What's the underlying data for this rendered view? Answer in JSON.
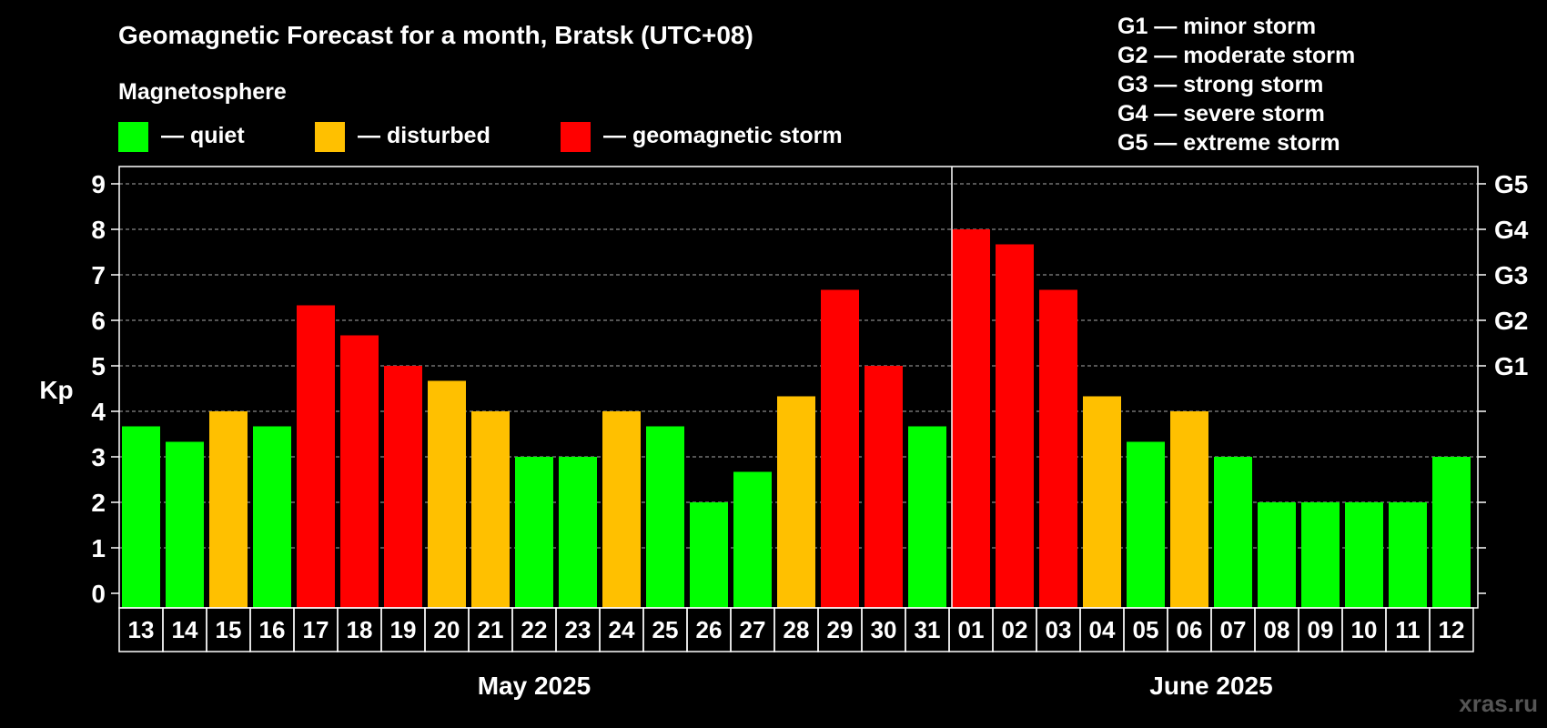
{
  "chart_data": {
    "type": "bar",
    "title": "Geomagnetic Forecast for a month, Bratsk (UTC+08)",
    "ylabel": "Kp",
    "ylim": [
      0,
      9
    ],
    "yticks": [
      0,
      1,
      2,
      3,
      4,
      5,
      6,
      7,
      8,
      9
    ],
    "grid": true,
    "categories": [
      "13",
      "14",
      "15",
      "16",
      "17",
      "18",
      "19",
      "20",
      "21",
      "22",
      "23",
      "24",
      "25",
      "26",
      "27",
      "28",
      "29",
      "30",
      "31",
      "01",
      "02",
      "03",
      "04",
      "05",
      "06",
      "07",
      "08",
      "09",
      "10",
      "11",
      "12"
    ],
    "values": [
      3.67,
      3.33,
      4,
      3.67,
      6.33,
      5.67,
      5,
      4.67,
      4,
      3,
      3,
      4,
      3.67,
      2,
      2.67,
      4.33,
      6.67,
      5,
      3.67,
      8,
      7.67,
      6.67,
      4.33,
      3.33,
      4,
      3,
      2,
      2,
      2,
      2,
      3
    ],
    "status": [
      "quiet",
      "quiet",
      "disturbed",
      "quiet",
      "storm",
      "storm",
      "storm",
      "disturbed",
      "disturbed",
      "quiet",
      "quiet",
      "disturbed",
      "quiet",
      "quiet",
      "quiet",
      "disturbed",
      "storm",
      "storm",
      "quiet",
      "storm",
      "storm",
      "storm",
      "disturbed",
      "quiet",
      "disturbed",
      "quiet",
      "quiet",
      "quiet",
      "quiet",
      "quiet",
      "quiet"
    ],
    "months": [
      {
        "label": "May 2025",
        "start_index": 0,
        "end_index": 18
      },
      {
        "label": "June 2025",
        "start_index": 19,
        "end_index": 30
      }
    ],
    "g_scale": [
      {
        "label": "G1",
        "kp": 5
      },
      {
        "label": "G2",
        "kp": 6
      },
      {
        "label": "G3",
        "kp": 7
      },
      {
        "label": "G4",
        "kp": 8
      },
      {
        "label": "G5",
        "kp": 9
      }
    ]
  },
  "legend": {
    "heading": "Magnetosphere",
    "items": [
      {
        "key": "quiet",
        "label": "— quiet",
        "color": "#00ff00"
      },
      {
        "key": "disturbed",
        "label": "— disturbed",
        "color": "#ffc000"
      },
      {
        "key": "storm",
        "label": "— geomagnetic storm",
        "color": "#ff0000"
      }
    ]
  },
  "g_legend": [
    "G1 — minor storm",
    "G2 — moderate storm",
    "G3 — strong storm",
    "G4 — severe storm",
    "G5 — extreme storm"
  ],
  "watermark": "xras.ru"
}
